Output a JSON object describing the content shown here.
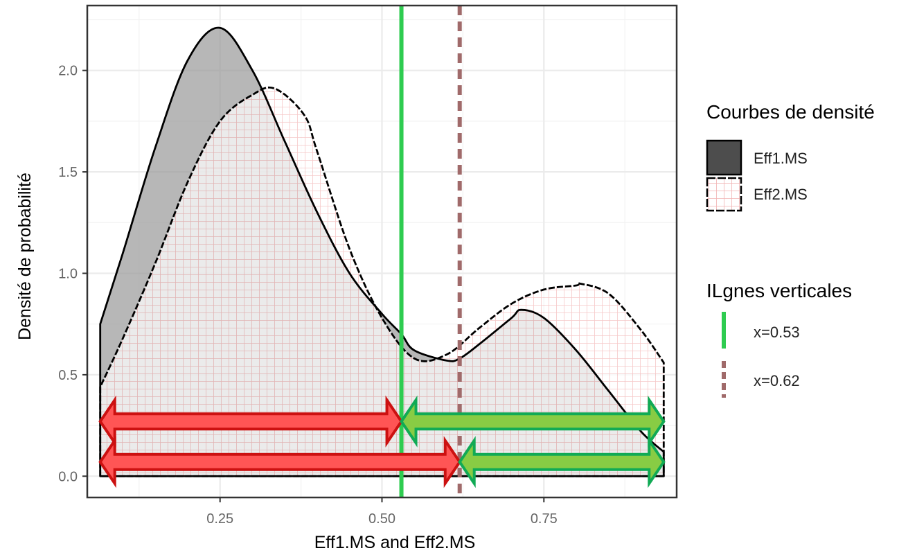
{
  "chart_data": {
    "type": "area",
    "xlabel": "Eff1.MS and Eff2.MS",
    "ylabel": "Densité de probabilité",
    "xlim": [
      0.045,
      0.955
    ],
    "ylim": [
      -0.105,
      2.32
    ],
    "x_ticks": [
      0.25,
      0.5,
      0.75
    ],
    "x_tick_labels": [
      "0.25",
      "0.50",
      "0.75"
    ],
    "y_ticks": [
      0,
      0.5,
      1,
      1.5,
      2
    ],
    "y_tick_labels": [
      "0.0",
      "0.5",
      "1.0",
      "1.5",
      "2.0"
    ],
    "grid": true,
    "legend_position": "right",
    "series": [
      {
        "name": "Eff1.MS",
        "fill": "#4d4d4d",
        "x": [
          0.065,
          0.1,
          0.15,
          0.2,
          0.25,
          0.3,
          0.35,
          0.4,
          0.45,
          0.5,
          0.53,
          0.55,
          0.6,
          0.62,
          0.65,
          0.7,
          0.715,
          0.75,
          0.8,
          0.85,
          0.9,
          0.935
        ],
        "y": [
          0.75,
          1.1,
          1.62,
          2.05,
          2.21,
          2.0,
          1.65,
          1.3,
          1.0,
          0.8,
          0.7,
          0.62,
          0.57,
          0.58,
          0.65,
          0.78,
          0.82,
          0.78,
          0.62,
          0.42,
          0.22,
          0.12
        ]
      },
      {
        "name": "Eff2.MS",
        "fill": "#ff9999",
        "x": [
          0.065,
          0.1,
          0.15,
          0.2,
          0.25,
          0.3,
          0.335,
          0.38,
          0.4,
          0.45,
          0.5,
          0.55,
          0.6,
          0.65,
          0.7,
          0.75,
          0.8,
          0.805,
          0.85,
          0.9,
          0.935
        ],
        "y": [
          0.44,
          0.68,
          1.05,
          1.45,
          1.75,
          1.88,
          1.91,
          1.78,
          1.6,
          1.12,
          0.78,
          0.58,
          0.6,
          0.73,
          0.85,
          0.92,
          0.94,
          0.95,
          0.9,
          0.72,
          0.56
        ]
      }
    ],
    "vlines": [
      {
        "name": "x=0.53",
        "x": 0.53,
        "color": "#2ecc50",
        "style": "solid"
      },
      {
        "name": "x=0.62",
        "x": 0.62,
        "color": "#a06a6a",
        "style": "dashed"
      }
    ],
    "arrows": [
      {
        "x1": 0.065,
        "x2": 0.53,
        "y": 0.27,
        "color": "#ff5555",
        "stroke": "#cc1111"
      },
      {
        "x1": 0.53,
        "x2": 0.935,
        "y": 0.27,
        "color": "#88cc44",
        "stroke": "#11aa55"
      },
      {
        "x1": 0.065,
        "x2": 0.62,
        "y": 0.07,
        "color": "#ff5555",
        "stroke": "#cc1111"
      },
      {
        "x1": 0.62,
        "x2": 0.935,
        "y": 0.07,
        "color": "#88cc44",
        "stroke": "#11aa55"
      }
    ]
  },
  "legend": {
    "density_title": "Courbes de densité",
    "density_items": [
      "Eff1.MS",
      "Eff2.MS"
    ],
    "vline_title": "ILgnes verticales",
    "vline_items": [
      "x=0.53",
      "x=0.62"
    ]
  }
}
